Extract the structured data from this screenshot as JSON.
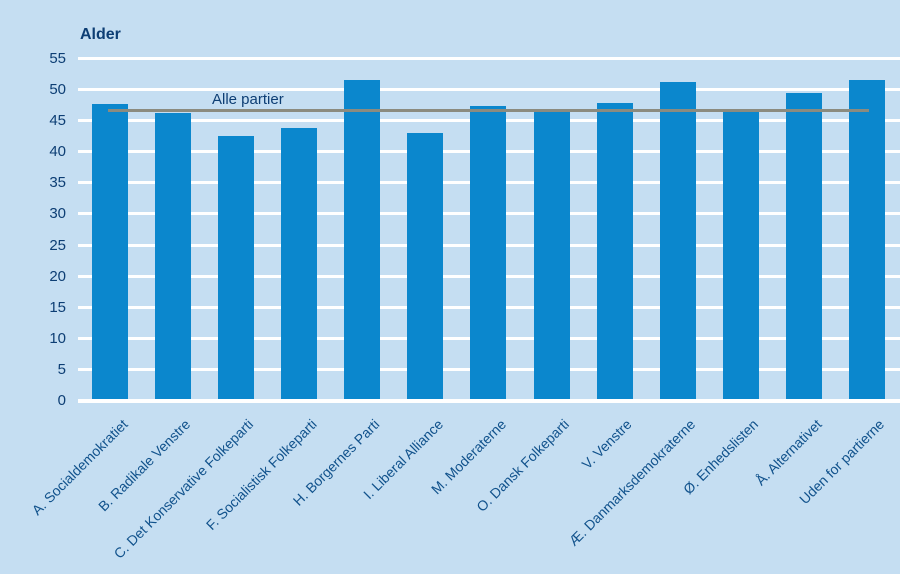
{
  "chart_data": {
    "type": "bar",
    "title": "Alder",
    "categories": [
      "A. Socialdemokratiet",
      "B. Radikale Venstre",
      "C. Det Konservative Folkeparti",
      "F. Socialistisk Folkeparti",
      "H. Borgernes Parti",
      "I. Liberal Alliance",
      "M. Moderaterne",
      "O. Dansk Folkeparti",
      "V. Venstre",
      "Æ. Danmarksdemokraterne",
      "Ø. Enhedslisten",
      "Å. Alternativet",
      "Uden for partierne"
    ],
    "values": [
      47.6,
      46.2,
      42.4,
      43.8,
      51.4,
      43.0,
      47.2,
      46.8,
      47.7,
      51.1,
      46.4,
      49.3,
      51.5
    ],
    "reference_line": {
      "label": "Alle partier",
      "value": 46.5
    },
    "ylim": [
      0,
      55
    ],
    "yticks": [
      0,
      5,
      10,
      15,
      20,
      25,
      30,
      35,
      40,
      45,
      50,
      55
    ],
    "grid": "horizontal-white",
    "legend_position": "none",
    "colors": {
      "background": "#c5def2",
      "bar": "#0b87cd",
      "gridline": "#ffffff",
      "reference_line": "#8b8b7f",
      "title_text": "#0d3e74",
      "tick_text": "#0d3e74",
      "category_text": "#11528c"
    }
  }
}
